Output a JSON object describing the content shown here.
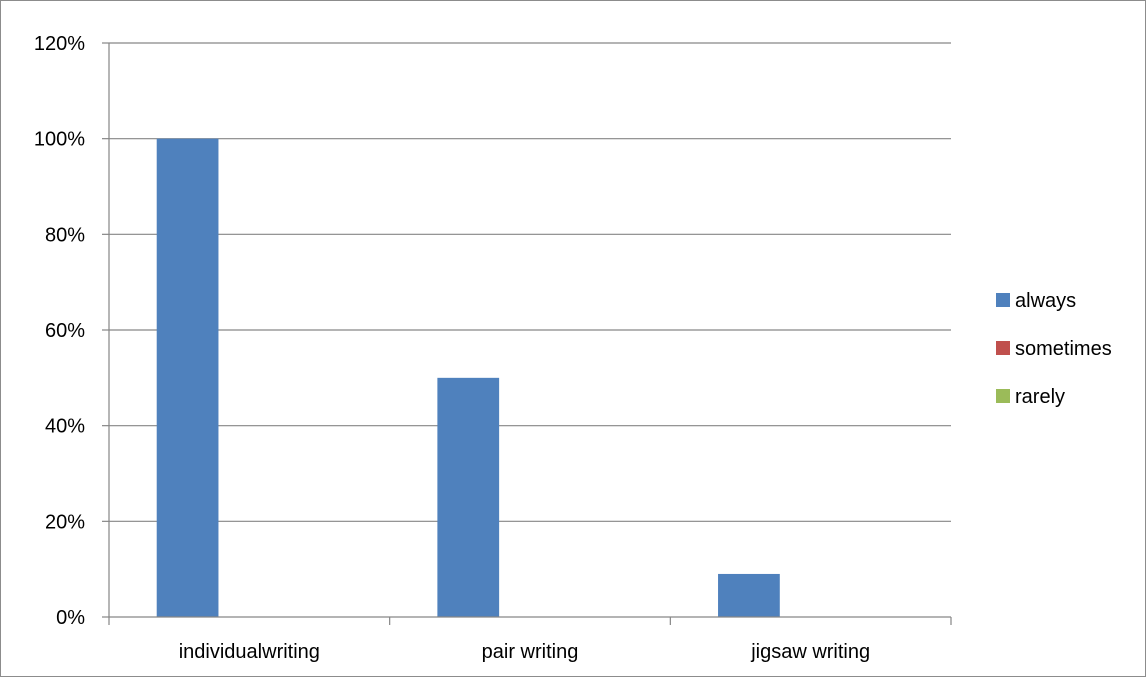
{
  "chart_data": {
    "type": "bar",
    "categories": [
      "individualwriting",
      "pair writing",
      "jigsaw writing"
    ],
    "series": [
      {
        "name": "always",
        "color": "#4f81bd",
        "values": [
          100,
          50,
          9
        ]
      },
      {
        "name": "sometimes",
        "color": "#c0504d",
        "values": [
          0,
          0,
          0
        ]
      },
      {
        "name": "rarely",
        "color": "#9bbb59",
        "values": [
          0,
          0,
          0
        ]
      }
    ],
    "yticks": [
      "0%",
      "20%",
      "40%",
      "60%",
      "80%",
      "100%",
      "120%"
    ],
    "ylim": [
      0,
      120
    ],
    "unit": "%",
    "grid": true,
    "legend_position": "right",
    "colors": {
      "gridline": "#868686",
      "axis": "#868686",
      "frame": "#8c8c8c"
    }
  }
}
